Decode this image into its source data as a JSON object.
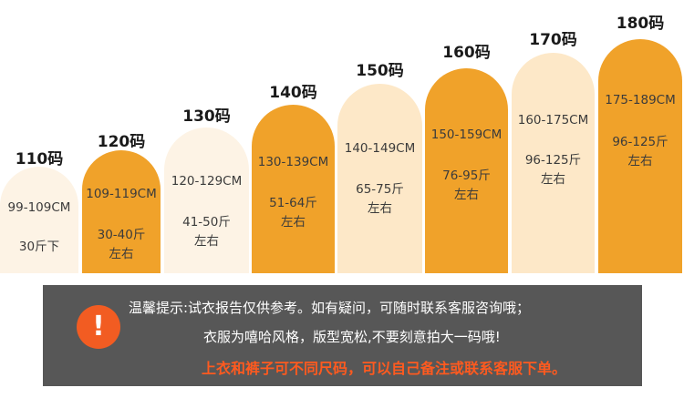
{
  "sizes": [
    {
      "label": "110码",
      "height": "99-109CM",
      "weight_line1": "30斤下",
      "weight_line2": "",
      "tone": "pale"
    },
    {
      "label": "120码",
      "height": "109-119CM",
      "weight_line1": "30-40斤",
      "weight_line2": "左右",
      "tone": "orange"
    },
    {
      "label": "130码",
      "height": "120-129CM",
      "weight_line1": "41-50斤",
      "weight_line2": "左右",
      "tone": "pale"
    },
    {
      "label": "140码",
      "height": "130-139CM",
      "weight_line1": "51-64斤",
      "weight_line2": "左右",
      "tone": "orange"
    },
    {
      "label": "150码",
      "height": "140-149CM",
      "weight_line1": "65-75斤",
      "weight_line2": "左右",
      "tone": "cream"
    },
    {
      "label": "160码",
      "height": "150-159CM",
      "weight_line1": "76-95斤",
      "weight_line2": "左右",
      "tone": "orange"
    },
    {
      "label": "170码",
      "height": "160-175CM",
      "weight_line1": "96-125斤",
      "weight_line2": "左右",
      "tone": "cream"
    },
    {
      "label": "180码",
      "height": "175-189CM",
      "weight_line1": "96-125斤",
      "weight_line2": "左右",
      "tone": "orange"
    }
  ],
  "tips": {
    "icon": "!",
    "line1": "温馨提示:试衣报告仅供参考。如有疑问，可随时联系客服咨询哦；",
    "line2": "衣服为嘻哈风格，版型宽松,不要刻意拍大一码哦!",
    "line3": "上衣和裤子可不同尺码，可以自己备注或联系客服下单。"
  },
  "colors": {
    "orange": "#f0a22a",
    "cream": "#fde8c8",
    "pale": "#fdf3e5",
    "warning": "#ff5a1f",
    "panel": "#575757"
  }
}
